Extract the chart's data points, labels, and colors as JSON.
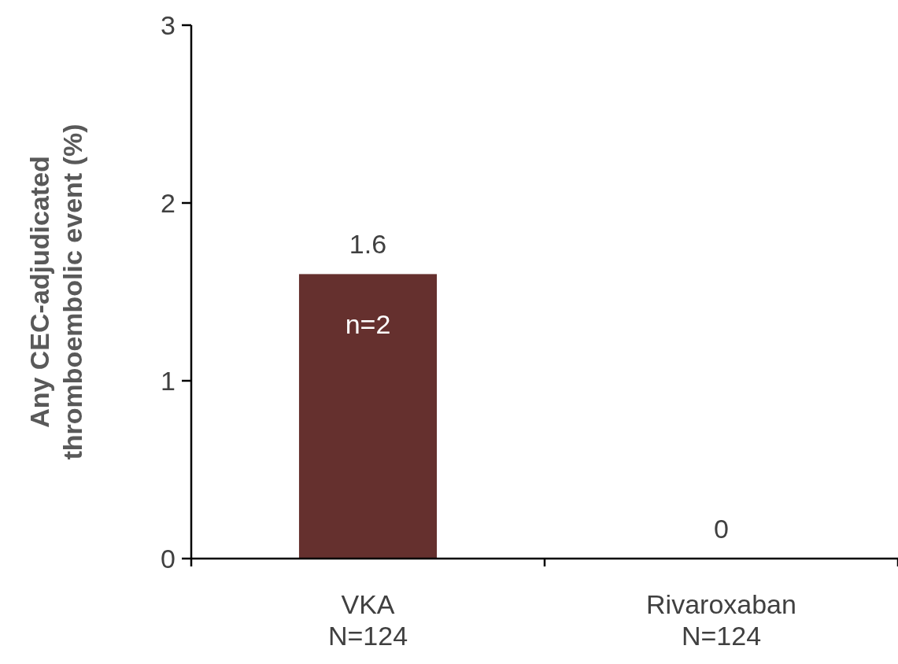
{
  "chart_data": {
    "type": "bar",
    "ylabel": "Any CEC-adjudicated\nthromboembolic event (%)",
    "categories": [
      "VKA\nN=124",
      "Rivaroxaban\nN=124"
    ],
    "values": [
      1.6,
      0
    ],
    "color": "#65302e",
    "ylim": [
      0,
      3
    ],
    "yticks": [
      0,
      1,
      2,
      3
    ],
    "grid": false,
    "data_labels": true,
    "annotations": [
      "n=2"
    ]
  }
}
